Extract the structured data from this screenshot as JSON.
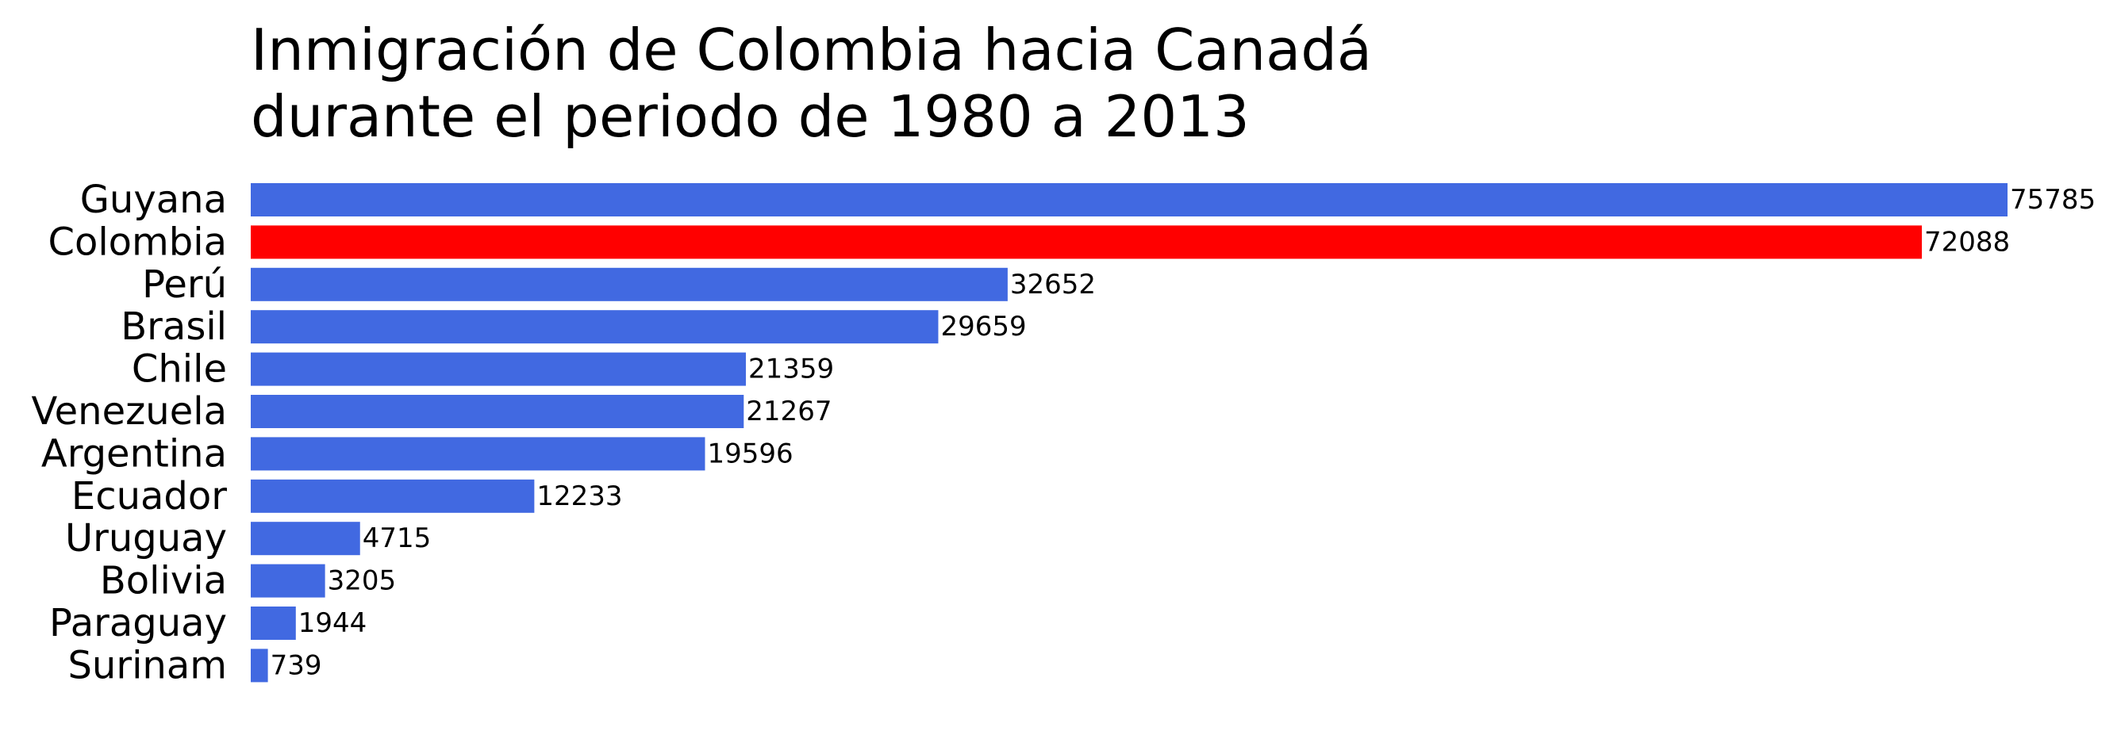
{
  "chart_data": {
    "type": "bar",
    "orientation": "horizontal",
    "title_lines": [
      "Inmigración de Colombia hacia Canadá",
      "durante el periodo de 1980 a 2013"
    ],
    "categories": [
      "Guyana",
      "Colombia",
      "Perú",
      "Brasil",
      "Chile",
      "Venezuela",
      "Argentina",
      "Ecuador",
      "Uruguay",
      "Bolivia",
      "Paraguay",
      "Surinam"
    ],
    "values": [
      75785,
      72088,
      32652,
      29659,
      21359,
      21267,
      19596,
      12233,
      4715,
      3205,
      1944,
      739
    ],
    "value_labels": [
      "75785",
      "72088",
      "32652",
      "29659",
      "21359",
      "21267",
      "19596",
      "12233",
      "4715",
      "3205",
      "1944",
      "739"
    ],
    "xlim": [
      0,
      75785
    ],
    "highlight_category": "Colombia",
    "colors": {
      "default": "#4169E1",
      "highlight": "#FF0000"
    },
    "grid": false,
    "axes_visible": false,
    "legend": "none"
  }
}
